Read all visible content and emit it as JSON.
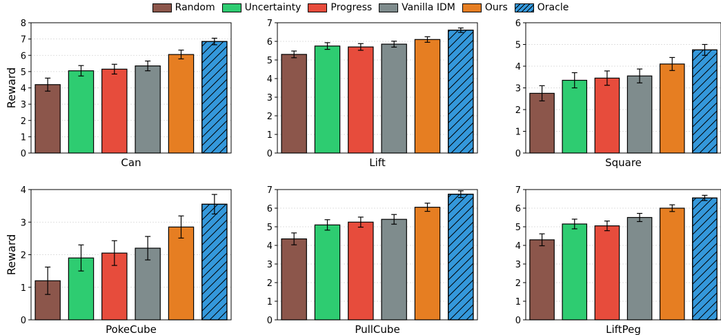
{
  "legend": [
    {
      "label": "Random",
      "color": "#8c564b",
      "hatch": false
    },
    {
      "label": "Uncertainty",
      "color": "#2ecc71",
      "hatch": false
    },
    {
      "label": "Progress",
      "color": "#e74c3c",
      "hatch": false
    },
    {
      "label": "Vanilla IDM",
      "color": "#7f8c8d",
      "hatch": false
    },
    {
      "label": "Ours",
      "color": "#e67e22",
      "hatch": false
    },
    {
      "label": "Oracle",
      "color": "#3498db",
      "hatch": true
    }
  ],
  "chart_data": [
    {
      "type": "bar",
      "title": "Can",
      "ylabel": "Reward",
      "ylim": [
        0,
        8
      ],
      "yticks": [
        0,
        1,
        2,
        3,
        4,
        5,
        6,
        7,
        8
      ],
      "grid": true,
      "categories": [
        "Random",
        "Uncertainty",
        "Progress",
        "Vanilla IDM",
        "Ours",
        "Oracle"
      ],
      "values": [
        4.2,
        5.05,
        5.15,
        5.35,
        6.05,
        6.85
      ],
      "errors": [
        0.4,
        0.32,
        0.3,
        0.3,
        0.27,
        0.2
      ]
    },
    {
      "type": "bar",
      "title": "Lift",
      "ylabel": "",
      "ylim": [
        0,
        7
      ],
      "yticks": [
        0,
        1,
        2,
        3,
        4,
        5,
        6,
        7
      ],
      "grid": true,
      "categories": [
        "Random",
        "Uncertainty",
        "Progress",
        "Vanilla IDM",
        "Ours",
        "Oracle"
      ],
      "values": [
        5.3,
        5.75,
        5.7,
        5.85,
        6.1,
        6.6
      ],
      "errors": [
        0.18,
        0.18,
        0.18,
        0.16,
        0.15,
        0.12
      ]
    },
    {
      "type": "bar",
      "title": "Square",
      "ylabel": "",
      "ylim": [
        0,
        6
      ],
      "yticks": [
        0,
        1,
        2,
        3,
        4,
        5,
        6
      ],
      "grid": true,
      "categories": [
        "Random",
        "Uncertainty",
        "Progress",
        "Vanilla IDM",
        "Ours",
        "Oracle"
      ],
      "values": [
        2.75,
        3.35,
        3.45,
        3.55,
        4.1,
        4.75
      ],
      "errors": [
        0.35,
        0.35,
        0.33,
        0.32,
        0.3,
        0.25
      ]
    },
    {
      "type": "bar",
      "title": "PokeCube",
      "ylabel": "Reward",
      "ylim": [
        0,
        4
      ],
      "yticks": [
        0,
        1,
        2,
        3,
        4
      ],
      "grid": true,
      "categories": [
        "Random",
        "Uncertainty",
        "Progress",
        "Vanilla IDM",
        "Ours",
        "Oracle"
      ],
      "values": [
        1.2,
        1.9,
        2.05,
        2.2,
        2.85,
        3.55
      ],
      "errors": [
        0.42,
        0.4,
        0.38,
        0.36,
        0.34,
        0.3
      ]
    },
    {
      "type": "bar",
      "title": "PullCube",
      "ylabel": "",
      "ylim": [
        0,
        7
      ],
      "yticks": [
        0,
        1,
        2,
        3,
        4,
        5,
        6,
        7
      ],
      "grid": true,
      "categories": [
        "Random",
        "Uncertainty",
        "Progress",
        "Vanilla IDM",
        "Ours",
        "Oracle"
      ],
      "values": [
        4.35,
        5.1,
        5.25,
        5.4,
        6.05,
        6.75
      ],
      "errors": [
        0.32,
        0.28,
        0.27,
        0.26,
        0.22,
        0.18
      ]
    },
    {
      "type": "bar",
      "title": "LiftPeg",
      "ylabel": "",
      "ylim": [
        0,
        7
      ],
      "yticks": [
        0,
        1,
        2,
        3,
        4,
        5,
        6,
        7
      ],
      "grid": true,
      "categories": [
        "Random",
        "Uncertainty",
        "Progress",
        "Vanilla IDM",
        "Ours",
        "Oracle"
      ],
      "values": [
        4.3,
        5.15,
        5.05,
        5.5,
        6.0,
        6.55
      ],
      "errors": [
        0.32,
        0.26,
        0.26,
        0.22,
        0.18,
        0.14
      ]
    }
  ]
}
